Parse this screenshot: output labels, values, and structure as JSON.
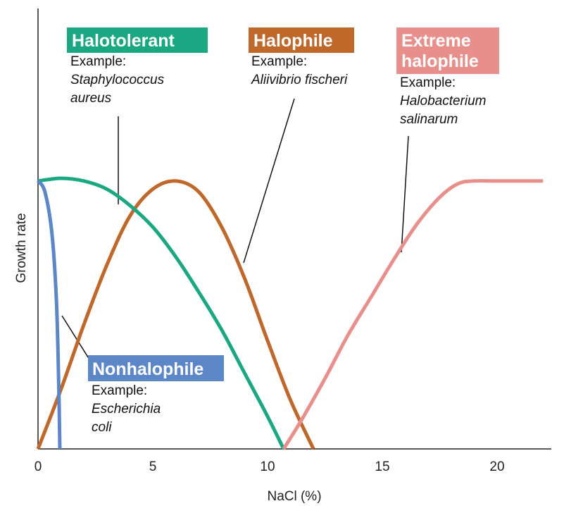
{
  "chart_data": {
    "type": "line",
    "xlabel": "NaCl (%)",
    "ylabel": "Growth rate",
    "xlim": [
      0,
      22
    ],
    "ylim": [
      0,
      1
    ],
    "x_ticks": [
      "0",
      "5",
      "10",
      "15",
      "20"
    ],
    "grid": false,
    "series": [
      {
        "name": "Nonhalophile",
        "example_label": "Example:",
        "example_lines": [
          "Escherichia",
          "coli"
        ],
        "color": "#5b86c8",
        "points": [
          [
            0,
            0.99
          ],
          [
            0.3,
            0.95
          ],
          [
            0.6,
            0.8
          ],
          [
            0.8,
            0.55
          ],
          [
            0.9,
            0.25
          ],
          [
            0.95,
            0.0
          ]
        ]
      },
      {
        "name": "Halotolerant",
        "example_label": "Example:",
        "example_lines": [
          "Staphylococcus",
          "aureus"
        ],
        "color": "#1aa882",
        "points": [
          [
            0,
            0.99
          ],
          [
            1.0,
            1.0
          ],
          [
            2.0,
            0.99
          ],
          [
            3.0,
            0.96
          ],
          [
            4.0,
            0.9
          ],
          [
            5.0,
            0.82
          ],
          [
            6.0,
            0.71
          ],
          [
            7.0,
            0.58
          ],
          [
            8.0,
            0.44
          ],
          [
            9.0,
            0.28
          ],
          [
            10.0,
            0.12
          ],
          [
            10.7,
            0.0
          ]
        ]
      },
      {
        "name": "Halophile",
        "example_label": "Example:",
        "example_lines": [
          "Aliivibrio fischeri"
        ],
        "color": "#c0672a",
        "points": [
          [
            0,
            0.0
          ],
          [
            1.0,
            0.22
          ],
          [
            2.0,
            0.46
          ],
          [
            3.0,
            0.68
          ],
          [
            4.0,
            0.86
          ],
          [
            5.0,
            0.96
          ],
          [
            6.0,
            0.99
          ],
          [
            7.0,
            0.95
          ],
          [
            8.0,
            0.82
          ],
          [
            9.0,
            0.63
          ],
          [
            10.0,
            0.4
          ],
          [
            11.0,
            0.18
          ],
          [
            12.0,
            0.0
          ]
        ]
      },
      {
        "name": "Extreme\nhalophile",
        "title_lines": [
          "Extreme",
          "halophile"
        ],
        "example_label": "Example:",
        "example_lines": [
          "Halobacterium",
          "salinarum"
        ],
        "color": "#e88f8b",
        "points": [
          [
            10.7,
            0.0
          ],
          [
            11.5,
            0.11
          ],
          [
            12.5,
            0.26
          ],
          [
            13.5,
            0.42
          ],
          [
            14.5,
            0.56
          ],
          [
            15.5,
            0.7
          ],
          [
            16.5,
            0.83
          ],
          [
            17.5,
            0.93
          ],
          [
            18.3,
            0.98
          ],
          [
            19.0,
            0.99
          ],
          [
            20.0,
            0.99
          ],
          [
            22.0,
            0.99
          ]
        ]
      }
    ]
  }
}
